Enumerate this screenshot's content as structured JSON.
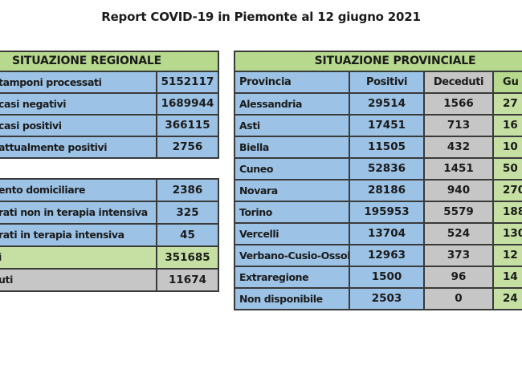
{
  "title": "Report COVID-19 in Piemonte al 12 giugno 2021",
  "colors": {
    "blue_cell": "#9cc3e6",
    "green_header": "#b6d98e",
    "green_cell": "#c5e0a2",
    "gray_cell": "#c6c6c6",
    "border": "#3a3a3a"
  },
  "regional_table": {
    "header": "SITUAZIONE REGIONALE",
    "rows": [
      {
        "label": "tamponi processati",
        "value": "5152117"
      },
      {
        "label": "casi negativi",
        "value": "1689944"
      },
      {
        "label": "casi positivi",
        "value": "366115"
      },
      {
        "label": "attualmente positivi",
        "value": "2756"
      }
    ]
  },
  "regional_table2": {
    "rows": [
      {
        "label": "ento domiciliare",
        "value": "2386"
      },
      {
        "label": "rati non in terapia intensiva",
        "value": "325"
      },
      {
        "label": "rati in terapia intensiva",
        "value": "45"
      },
      {
        "label": "i",
        "value": "351685"
      },
      {
        "label": "uti",
        "value": "11674"
      }
    ]
  },
  "provincial_table": {
    "header": "SITUAZIONE PROVINCIALE",
    "columns": [
      "Provincia",
      "Positivi",
      "Deceduti",
      "Gu"
    ],
    "rows": [
      {
        "provincia": "Alessandria",
        "positivi": "29514",
        "deceduti": "1566",
        "guariti": "27"
      },
      {
        "provincia": "Asti",
        "positivi": "17451",
        "deceduti": "713",
        "guariti": "16"
      },
      {
        "provincia": "Biella",
        "positivi": "11505",
        "deceduti": "432",
        "guariti": "10"
      },
      {
        "provincia": "Cuneo",
        "positivi": "52836",
        "deceduti": "1451",
        "guariti": "50"
      },
      {
        "provincia": "Novara",
        "positivi": "28186",
        "deceduti": "940",
        "guariti": "270"
      },
      {
        "provincia": "Torino",
        "positivi": "195953",
        "deceduti": "5579",
        "guariti": "188"
      },
      {
        "provincia": "Vercelli",
        "positivi": "13704",
        "deceduti": "524",
        "guariti": "130"
      },
      {
        "provincia": "Verbano-Cusio-Ossola",
        "positivi": "12963",
        "deceduti": "373",
        "guariti": "12"
      },
      {
        "provincia": "Extraregione",
        "positivi": "1500",
        "deceduti": "96",
        "guariti": "14"
      },
      {
        "provincia": "Non disponibile",
        "positivi": "2503",
        "deceduti": "0",
        "guariti": "24"
      }
    ]
  }
}
